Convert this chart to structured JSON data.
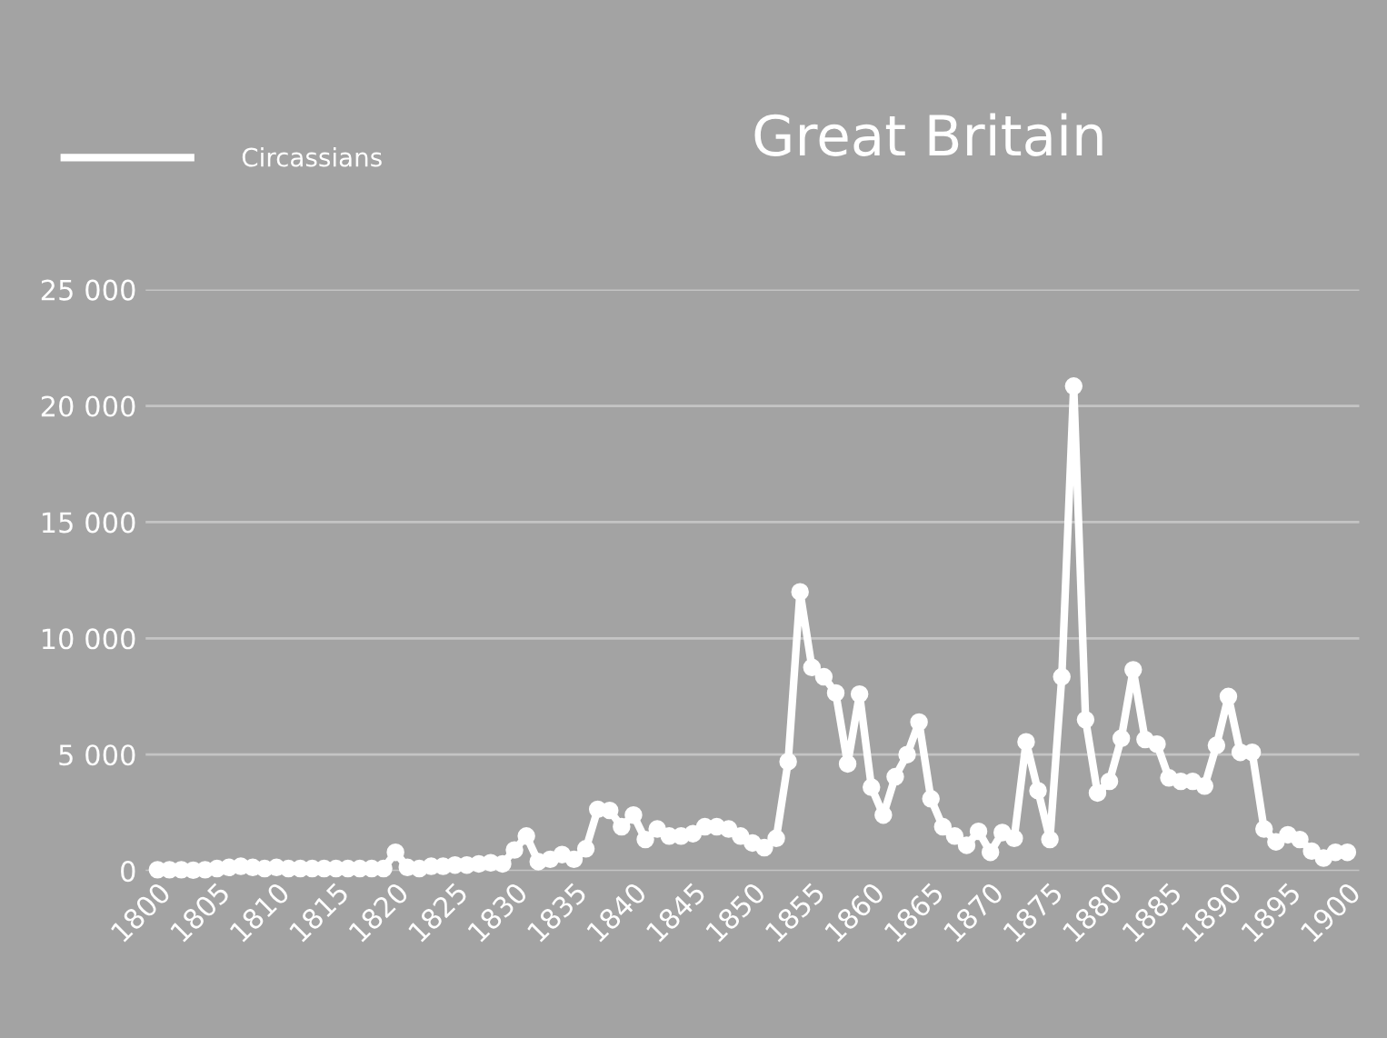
{
  "chart_data": {
    "type": "line",
    "title": "Great Britain",
    "x": [
      1800,
      1801,
      1802,
      1803,
      1804,
      1805,
      1806,
      1807,
      1808,
      1809,
      1810,
      1811,
      1812,
      1813,
      1814,
      1815,
      1816,
      1817,
      1818,
      1819,
      1820,
      1821,
      1822,
      1823,
      1824,
      1825,
      1826,
      1827,
      1828,
      1829,
      1830,
      1831,
      1832,
      1833,
      1834,
      1835,
      1836,
      1837,
      1838,
      1839,
      1840,
      1841,
      1842,
      1843,
      1844,
      1845,
      1846,
      1847,
      1848,
      1849,
      1850,
      1851,
      1852,
      1853,
      1854,
      1855,
      1856,
      1857,
      1858,
      1859,
      1860,
      1861,
      1862,
      1863,
      1864,
      1865,
      1866,
      1867,
      1868,
      1869,
      1870,
      1871,
      1872,
      1873,
      1874,
      1875,
      1876,
      1877,
      1878,
      1879,
      1880,
      1881,
      1882,
      1883,
      1884,
      1885,
      1886,
      1887,
      1888,
      1889,
      1890,
      1891,
      1892,
      1893,
      1894,
      1895,
      1896,
      1897,
      1898,
      1899,
      1900
    ],
    "series": [
      {
        "name": "Circassians",
        "color": "#ffffff",
        "values": [
          50,
          50,
          50,
          30,
          50,
          100,
          150,
          200,
          150,
          100,
          150,
          100,
          100,
          100,
          100,
          100,
          100,
          100,
          100,
          100,
          800,
          150,
          100,
          200,
          200,
          250,
          250,
          300,
          350,
          300,
          900,
          1500,
          400,
          500,
          700,
          500,
          950,
          2650,
          2600,
          1900,
          2400,
          1350,
          1800,
          1500,
          1500,
          1600,
          1900,
          1900,
          1800,
          1500,
          1200,
          1000,
          1400,
          4700,
          12000,
          8750,
          8350,
          7650,
          4600,
          7600,
          3600,
          2400,
          4050,
          5000,
          6400,
          3100,
          1900,
          1500,
          1100,
          1700,
          800,
          1650,
          1400,
          5550,
          3450,
          1350,
          8350,
          20850,
          6500,
          3350,
          3850,
          5700,
          8650,
          5650,
          5450,
          4000,
          3850,
          3850,
          3650,
          5400,
          7500,
          5100,
          5100,
          1800,
          1250,
          1550,
          1350,
          850,
          550,
          800,
          800
        ]
      }
    ],
    "xlim": [
      1799,
      1901
    ],
    "ylim": [
      0,
      25000
    ],
    "xticks": [
      1800,
      1805,
      1810,
      1815,
      1820,
      1825,
      1830,
      1835,
      1840,
      1845,
      1850,
      1855,
      1860,
      1865,
      1870,
      1875,
      1880,
      1885,
      1890,
      1895,
      1900
    ],
    "yticks": [
      {
        "value": 0,
        "label": "0"
      },
      {
        "value": 5000,
        "label": "5 000"
      },
      {
        "value": 10000,
        "label": "10 000"
      },
      {
        "value": 15000,
        "label": "15 000"
      },
      {
        "value": 20000,
        "label": "20 000"
      },
      {
        "value": 25000,
        "label": "25 000"
      }
    ],
    "grid": "y",
    "legend": "top left",
    "marker": "circle",
    "line_style": "solid"
  }
}
